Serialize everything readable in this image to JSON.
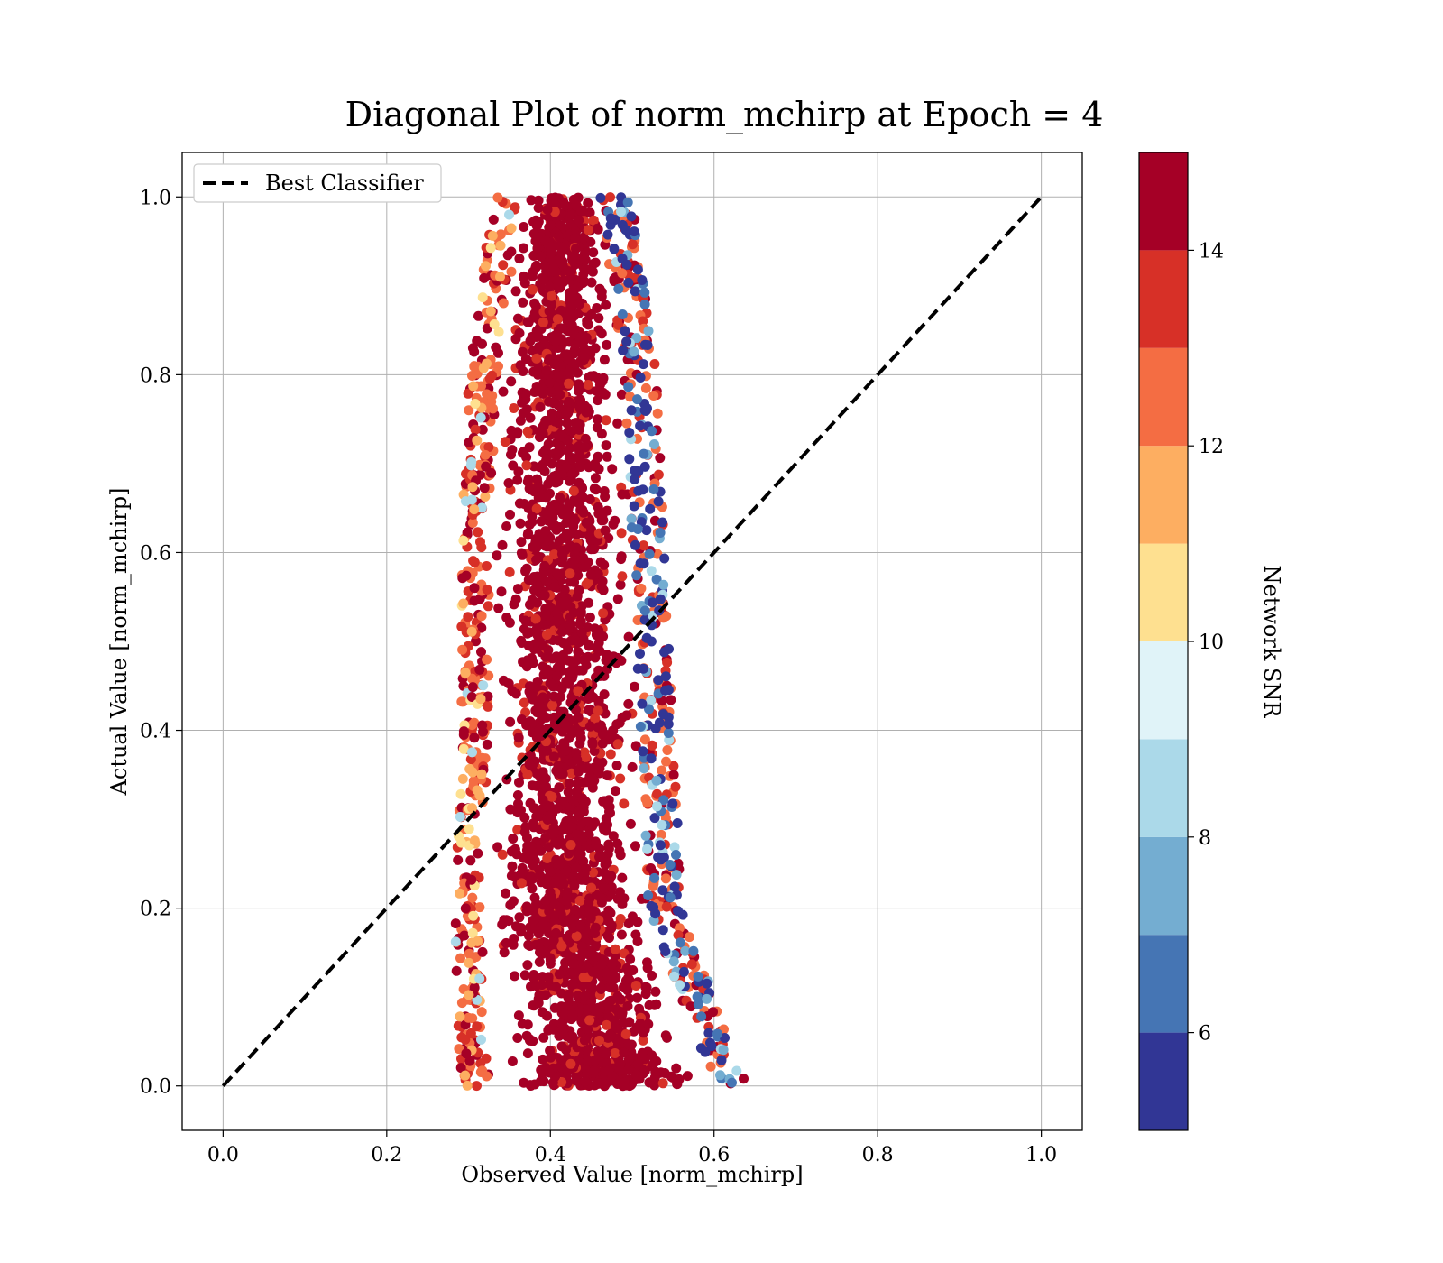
{
  "chart_data": {
    "type": "scatter",
    "title": "Diagonal Plot of norm_mchirp at Epoch = 4",
    "xlabel": "Observed Value [norm_mchirp]",
    "ylabel": "Actual Value [norm_mchirp]",
    "xlim": [
      -0.05,
      1.05
    ],
    "ylim": [
      -0.05,
      1.05
    ],
    "x_ticks": [
      "0.0",
      "0.2",
      "0.4",
      "0.6",
      "0.8",
      "1.0"
    ],
    "y_ticks": [
      "0.0",
      "0.2",
      "0.4",
      "0.6",
      "0.8",
      "1.0"
    ],
    "grid": true,
    "legend": {
      "position": "top-left",
      "entries": [
        "Best Classifier"
      ]
    },
    "reference_line": {
      "name": "Best Classifier",
      "style": "dashed",
      "color": "#000000",
      "points": [
        [
          0.0,
          0.0
        ],
        [
          1.0,
          1.0
        ]
      ]
    },
    "point_cloud": {
      "description_x_range_by_y": [
        {
          "y": 1.0,
          "x_min": 0.33,
          "x_max": 0.5
        },
        {
          "y": 0.8,
          "x_min": 0.3,
          "x_max": 0.53
        },
        {
          "y": 0.6,
          "x_min": 0.29,
          "x_max": 0.54
        },
        {
          "y": 0.4,
          "x_min": 0.29,
          "x_max": 0.55
        },
        {
          "y": 0.2,
          "x_min": 0.28,
          "x_max": 0.56
        },
        {
          "y": 0.0,
          "x_min": 0.29,
          "x_max": 0.64
        }
      ],
      "dominant_snr": "14+"
    },
    "colorbar": {
      "label": "Network SNR",
      "min": 5,
      "max": 15,
      "ticks": [
        "6",
        "8",
        "10",
        "12",
        "14"
      ],
      "tick_values": [
        6,
        8,
        10,
        12,
        14
      ],
      "colors": [
        "#313695",
        "#4575b4",
        "#74add1",
        "#abd9e9",
        "#e0f3f8",
        "#fee090",
        "#fdae61",
        "#f46d43",
        "#d73027",
        "#a50026"
      ]
    }
  }
}
